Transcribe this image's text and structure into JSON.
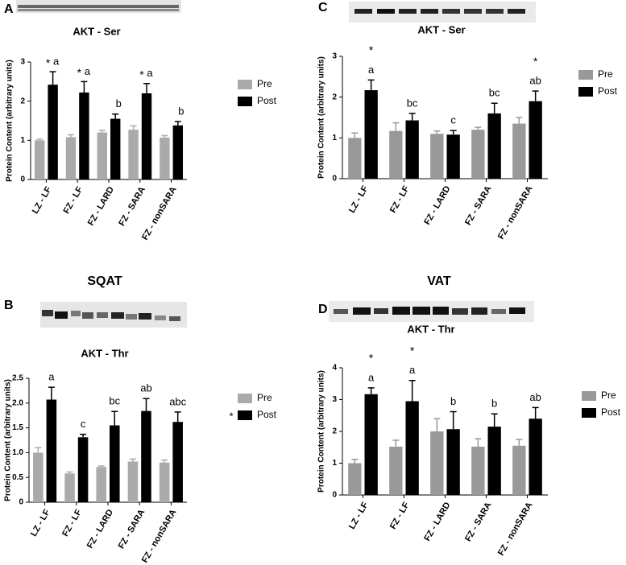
{
  "chart_data": [
    {
      "type": "bar",
      "panel": "A",
      "title": "AKT - Ser",
      "ylabel": "Protein Content (arbitrary units)",
      "categories": [
        "LZ - LF",
        "FZ - LF",
        "FZ - LARD",
        "FZ - SARA",
        "FZ - nonSARA"
      ],
      "series": [
        {
          "name": "Pre",
          "color": "#aaaaaa",
          "values": [
            1.0,
            1.08,
            1.2,
            1.27,
            1.07
          ],
          "errors": [
            0.03,
            0.06,
            0.05,
            0.1,
            0.05
          ]
        },
        {
          "name": "Post",
          "color": "#000000",
          "values": [
            2.42,
            2.22,
            1.55,
            2.2,
            1.38
          ],
          "errors": [
            0.33,
            0.28,
            0.12,
            0.25,
            0.1
          ]
        }
      ],
      "letters": [
        "a",
        "a",
        "b",
        "a",
        "b"
      ],
      "stars": [
        "*",
        "*",
        null,
        "*",
        null
      ],
      "ylim": [
        0,
        3
      ],
      "yticks": [
        0,
        1,
        2,
        3
      ]
    },
    {
      "type": "bar",
      "panel": "B",
      "heading": "SQAT",
      "title": "AKT - Thr",
      "ylabel": "Protein Content (arbitrary units)",
      "categories": [
        "LZ - LF",
        "FZ - LF",
        "FZ - LARD",
        "FZ - SARA",
        "FZ - nonSARA"
      ],
      "series": [
        {
          "name": "Pre",
          "color": "#aaaaaa",
          "values": [
            1.0,
            0.58,
            0.71,
            0.82,
            0.8
          ],
          "errors": [
            0.1,
            0.03,
            0.02,
            0.05,
            0.05
          ]
        },
        {
          "name": "Post",
          "color": "#000000",
          "values": [
            2.07,
            1.31,
            1.55,
            1.84,
            1.62
          ],
          "errors": [
            0.25,
            0.06,
            0.28,
            0.25,
            0.2
          ]
        }
      ],
      "letters": [
        "a",
        "c",
        "bc",
        "ab",
        "abc"
      ],
      "legend_note": "*",
      "ylim": [
        0,
        2.5
      ],
      "yticks": [
        0,
        0.5,
        {
          "value": 1,
          "label": "1.0"
        },
        1.5,
        {
          "value": 2,
          "label": "2.0"
        },
        2.5
      ]
    },
    {
      "type": "bar",
      "panel": "C",
      "title": "AKT - Ser",
      "ylabel": "Protein Content (arbitrary units)",
      "categories": [
        "LZ - LF",
        "FZ - LF",
        "FZ - LARD",
        "FZ - SARA",
        "FZ - nonSARA"
      ],
      "series": [
        {
          "name": "Pre",
          "color": "#999999",
          "values": [
            1.0,
            1.17,
            1.1,
            1.2,
            1.35
          ],
          "errors": [
            0.12,
            0.2,
            0.07,
            0.06,
            0.15
          ]
        },
        {
          "name": "Post",
          "color": "#000000",
          "values": [
            2.17,
            1.43,
            1.08,
            1.6,
            1.9
          ],
          "errors": [
            0.25,
            0.17,
            0.1,
            0.25,
            0.25
          ]
        }
      ],
      "letters": [
        "a",
        "bc",
        "c",
        "bc",
        "ab"
      ],
      "stars": [
        "*",
        null,
        null,
        null,
        "*"
      ],
      "ylim": [
        0,
        3
      ],
      "yticks": [
        0,
        1,
        2,
        3
      ]
    },
    {
      "type": "bar",
      "panel": "D",
      "heading": "VAT",
      "title": "AKT - Thr",
      "ylabel": "Protein Content (arbitrary units)",
      "categories": [
        "LZ - LF",
        "FZ - LF",
        "FZ - LARD",
        "FZ - SARA",
        "FZ - nonSARA"
      ],
      "series": [
        {
          "name": "Pre",
          "color": "#999999",
          "values": [
            1.0,
            1.52,
            2.0,
            1.52,
            1.55
          ],
          "errors": [
            0.12,
            0.2,
            0.4,
            0.25,
            0.2
          ]
        },
        {
          "name": "Post",
          "color": "#000000",
          "values": [
            3.17,
            2.95,
            2.07,
            2.15,
            2.4
          ],
          "errors": [
            0.2,
            0.65,
            0.55,
            0.4,
            0.35
          ]
        }
      ],
      "letters": [
        "a",
        "a",
        "b",
        "b",
        "ab"
      ],
      "stars": [
        "*",
        "*",
        null,
        null,
        null
      ],
      "ylim": [
        0,
        4
      ],
      "yticks": [
        0,
        1,
        2,
        3,
        4
      ]
    }
  ]
}
